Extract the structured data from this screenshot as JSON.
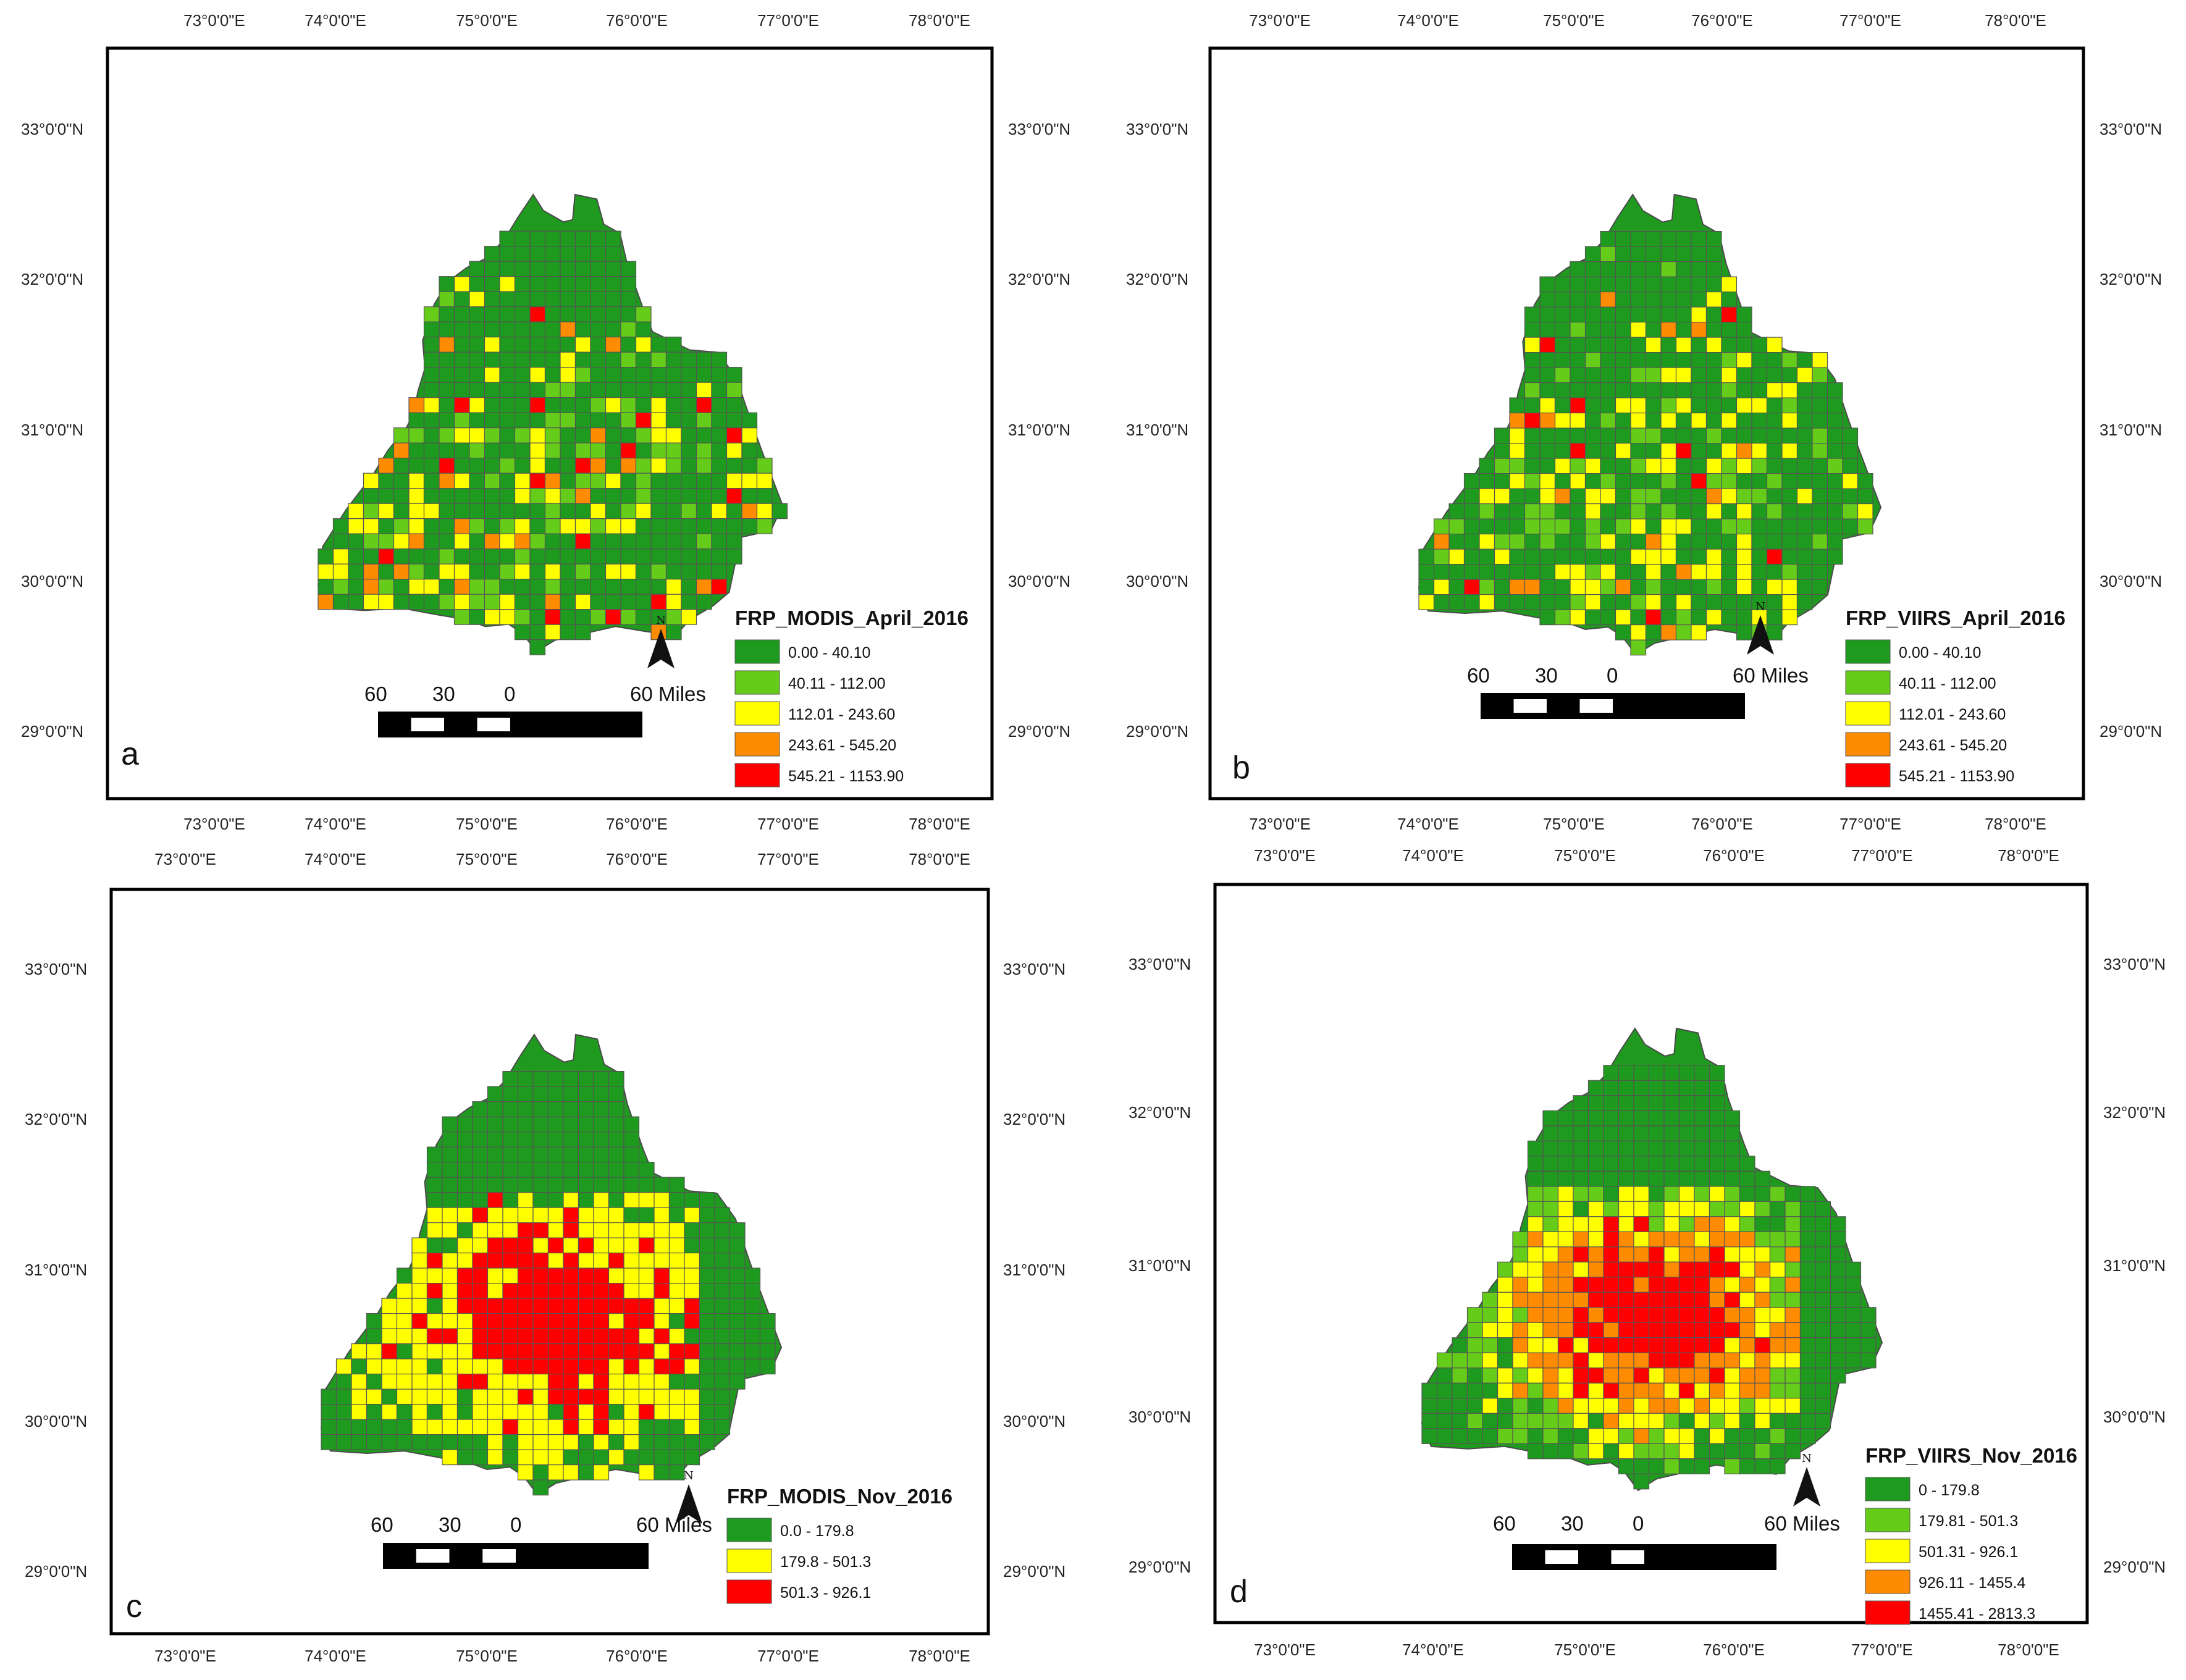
{
  "longitude_labels": [
    "73°0'0\"E",
    "74°0'0\"E",
    "75°0'0\"E",
    "76°0'0\"E",
    "77°0'0\"E",
    "78°0'0\"E"
  ],
  "latitude_labels": [
    "33°0'0\"N",
    "32°0'0\"N",
    "31°0'0\"N",
    "30°0'0\"N",
    "29°0'0\"N"
  ],
  "scale_bar": {
    "l60": "60",
    "l30": "30",
    "l0": "0",
    "miles": "60 Miles"
  },
  "north_label": "N",
  "colors": {
    "dark_green": "#1e9a1e",
    "light_green": "#66cc1a",
    "yellow": "#ffff00",
    "orange": "#ff8c00",
    "red": "#ff0000",
    "state_fill": "#1f9a1f",
    "frame": "#000000"
  },
  "panels": [
    {
      "letter": "a",
      "legend_title": "FRP_MODIS_April_2016",
      "classes": [
        {
          "label": "0.00 - 40.10",
          "color": "#1e9a1e"
        },
        {
          "label": "40.11 - 112.00",
          "color": "#66cc1a"
        },
        {
          "label": "112.01 - 243.60",
          "color": "#ffff00"
        },
        {
          "label": "243.61 - 545.20",
          "color": "#ff8c00"
        },
        {
          "label": "545.21 - 1153.90",
          "color": "#ff0000"
        }
      ]
    },
    {
      "letter": "b",
      "legend_title": "FRP_VIIRS_April_2016",
      "classes": [
        {
          "label": "0.00 - 40.10",
          "color": "#1e9a1e"
        },
        {
          "label": "40.11 - 112.00",
          "color": "#66cc1a"
        },
        {
          "label": "112.01 - 243.60",
          "color": "#ffff00"
        },
        {
          "label": "243.61 - 545.20",
          "color": "#ff8c00"
        },
        {
          "label": "545.21 - 1153.90",
          "color": "#ff0000"
        }
      ]
    },
    {
      "letter": "c",
      "legend_title": "FRP_MODIS_Nov_2016",
      "classes": [
        {
          "label": "0.0 - 179.8",
          "color": "#1e9a1e"
        },
        {
          "label": "179.8 - 501.3",
          "color": "#ffff00"
        },
        {
          "label": "501.3 - 926.1",
          "color": "#ff0000"
        }
      ]
    },
    {
      "letter": "d",
      "legend_title": "FRP_VIIRS_Nov_2016",
      "classes": [
        {
          "label": "0 - 179.8",
          "color": "#1e9a1e"
        },
        {
          "label": "179.81 - 501.3",
          "color": "#66cc1a"
        },
        {
          "label": "501.31 - 926.1",
          "color": "#ffff00"
        },
        {
          "label": "926.11 - 1455.4",
          "color": "#ff8c00"
        },
        {
          "label": "1455.41 - 2813.3",
          "color": "#ff0000"
        }
      ]
    }
  ]
}
